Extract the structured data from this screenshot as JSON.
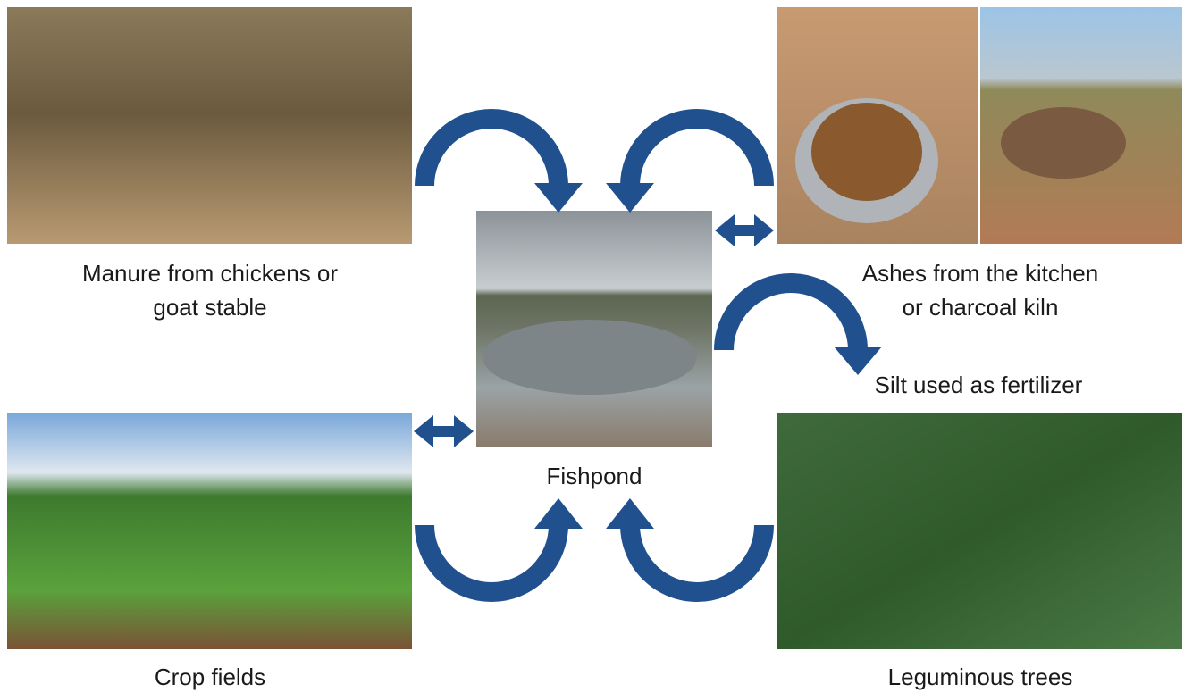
{
  "nodes": [
    {
      "lines": [
        "Manure from chickens or",
        "goat stable"
      ]
    },
    {
      "lines": [
        "Ashes from the kitchen",
        "or charcoal kiln"
      ]
    },
    {
      "lines": [
        "Fishpond"
      ]
    },
    {
      "lines": [
        "Silt used as fertilizer"
      ]
    },
    {
      "lines": [
        "Crop fields"
      ]
    },
    {
      "lines": [
        "Leguminous trees"
      ]
    }
  ]
}
